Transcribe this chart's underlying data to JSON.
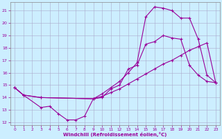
{
  "xlabel": "Windchill (Refroidissement éolien,°C)",
  "bg_color": "#cceeff",
  "grid_color": "#aaaacc",
  "line_color": "#990099",
  "xlim": [
    -0.5,
    23.5
  ],
  "ylim": [
    11.8,
    21.7
  ],
  "yticks": [
    12,
    13,
    14,
    15,
    16,
    17,
    18,
    19,
    20,
    21
  ],
  "xticks": [
    0,
    1,
    2,
    3,
    4,
    5,
    6,
    7,
    8,
    9,
    10,
    11,
    12,
    13,
    14,
    15,
    16,
    17,
    18,
    19,
    20,
    21,
    22,
    23
  ],
  "curve1_x": [
    0,
    1,
    3,
    4,
    5,
    6,
    7,
    8,
    9,
    10,
    11,
    12,
    13,
    14,
    15,
    16,
    17,
    18,
    19,
    20,
    21,
    22,
    23
  ],
  "curve1_y": [
    14.8,
    14.2,
    13.2,
    13.3,
    12.7,
    12.2,
    12.2,
    12.5,
    13.9,
    14.0,
    14.7,
    15.0,
    16.3,
    16.6,
    18.3,
    18.5,
    19.0,
    18.8,
    18.7,
    16.6,
    15.8,
    15.3,
    15.2
  ],
  "curve2_x": [
    0,
    1,
    3,
    9,
    10,
    11,
    12,
    13,
    14,
    15,
    16,
    17,
    18,
    19,
    20,
    21,
    22,
    23
  ],
  "curve2_y": [
    14.8,
    14.2,
    14.0,
    13.9,
    14.1,
    14.4,
    14.7,
    15.1,
    15.5,
    15.9,
    16.3,
    16.7,
    17.0,
    17.4,
    17.8,
    18.1,
    18.4,
    15.2
  ],
  "curve3_x": [
    0,
    1,
    3,
    9,
    10,
    11,
    12,
    13,
    14,
    15,
    16,
    17,
    18,
    19,
    20,
    21,
    22,
    23
  ],
  "curve3_y": [
    14.8,
    14.2,
    14.0,
    13.9,
    14.3,
    14.8,
    15.3,
    16.0,
    16.8,
    20.5,
    21.3,
    21.2,
    21.0,
    20.4,
    20.4,
    18.7,
    15.8,
    15.2
  ]
}
